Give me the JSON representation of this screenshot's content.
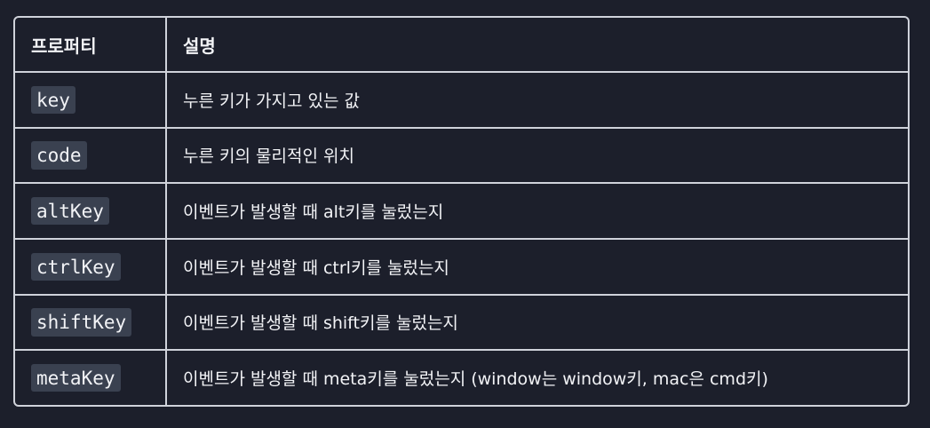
{
  "table": {
    "headers": [
      "프로퍼티",
      "설명"
    ],
    "rows": [
      {
        "property": "key",
        "description": "누른 키가 가지고 있는 값"
      },
      {
        "property": "code",
        "description": "누른 키의 물리적인 위치"
      },
      {
        "property": "altKey",
        "description": "이벤트가 발생할 때 alt키를 눌렀는지"
      },
      {
        "property": "ctrlKey",
        "description": "이벤트가 발생할 때 ctrl키를 눌렀는지"
      },
      {
        "property": "shiftKey",
        "description": "이벤트가 발생할 때 shift키를 눌렀는지"
      },
      {
        "property": "metaKey",
        "description": "이벤트가 발생할 때 meta키를 눌렀는지 (window는 window키, mac은 cmd키)"
      }
    ]
  },
  "colors": {
    "background": "#1c1f2b",
    "border": "#cfd2da",
    "code_background": "#3a4150",
    "text": "#f2f3f6"
  }
}
